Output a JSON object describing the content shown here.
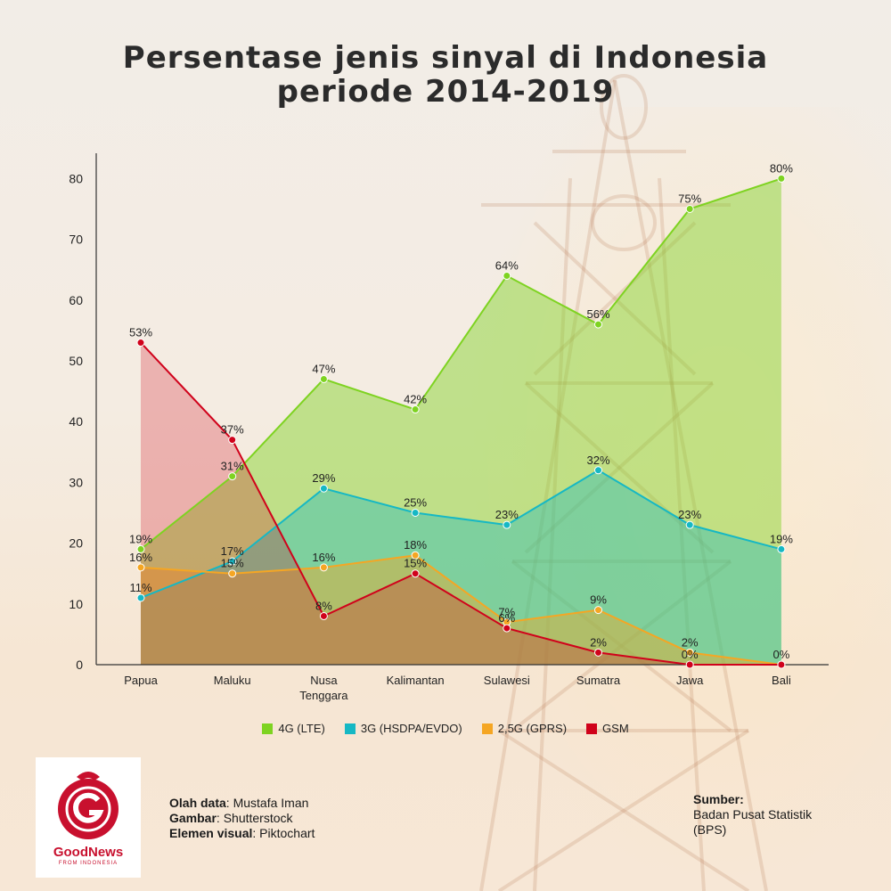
{
  "title_line1": "Persentase jenis sinyal di Indonesia",
  "title_line2": "periode 2014-2019",
  "chart_data": {
    "type": "area",
    "categories": [
      "Papua",
      "Maluku",
      "Nusa Tenggara",
      "Kalimantan",
      "Sulawesi",
      "Sumatra",
      "Jawa",
      "Bali"
    ],
    "ylim": [
      0,
      80
    ],
    "yticks": [
      0,
      10,
      20,
      30,
      40,
      50,
      60,
      70,
      80
    ],
    "series": [
      {
        "name": "4G (LTE)",
        "color": "#7ed321",
        "values": [
          19,
          31,
          47,
          42,
          64,
          56,
          75,
          80
        ]
      },
      {
        "name": "3G (HSDPA/EVDO)",
        "color": "#16b8c4",
        "values": [
          11,
          17,
          29,
          25,
          23,
          32,
          23,
          19
        ]
      },
      {
        "name": "2,5G (GPRS)",
        "color": "#f5a623",
        "values": [
          16,
          15,
          16,
          18,
          7,
          9,
          2,
          0
        ]
      },
      {
        "name": "GSM",
        "color": "#d0021b",
        "values": [
          53,
          37,
          8,
          15,
          6,
          2,
          0,
          0
        ]
      }
    ],
    "data_labels": [
      [
        "19%",
        "31%",
        "47%",
        "42%",
        "64%",
        "56%",
        "75%",
        "80%"
      ],
      [
        "11%",
        "17%",
        "29%",
        "25%",
        "23%",
        "32%",
        "23%",
        "19%"
      ],
      [
        "16%",
        "15%",
        "16%",
        "18%",
        "7%",
        "9%",
        "2%",
        ""
      ],
      [
        "53%",
        "37%",
        "8%",
        "15%",
        "6%",
        "2%",
        "0%",
        "0%"
      ]
    ],
    "legend_position": "bottom",
    "grid": false
  },
  "credits": {
    "olah_label": "Olah data",
    "olah_value": ": Mustafa Iman",
    "gambar_label": "Gambar",
    "gambar_value": ": Shutterstock",
    "elemen_label": "Elemen visual",
    "elemen_value": ": Piktochart"
  },
  "source": {
    "label": "Sumber:",
    "line1": "Badan Pusat Statistik",
    "line2": "(BPS)"
  },
  "logo": {
    "name": "GoodNews",
    "sub": "FROM INDONESIA"
  }
}
